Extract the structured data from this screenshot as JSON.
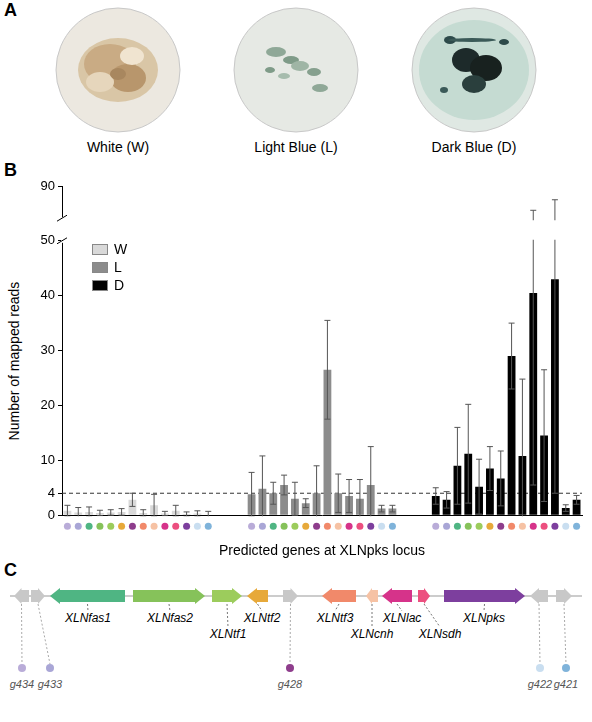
{
  "panel_letters": [
    "A",
    "B",
    "C"
  ],
  "photos": [
    {
      "label": "White (W)"
    },
    {
      "label": "Light Blue (L)"
    },
    {
      "label": "Dark Blue (D)"
    }
  ],
  "chart_data": {
    "type": "bar",
    "x_label": "Predicted genes at XLNpks locus",
    "y_label": "Number of mapped reads",
    "series": [
      {
        "name": "W",
        "color": "#d9d9d9",
        "values": [
          0.8,
          0.5,
          0.6,
          0.4,
          0.5,
          0.6,
          2.8,
          0.4,
          1.8,
          0.3,
          0.8,
          0.2,
          0.3,
          0.1
        ],
        "errors": [
          1.0,
          0.9,
          0.9,
          0.5,
          0.5,
          0.6,
          1.2,
          0.6,
          2.0,
          0.4,
          1.0,
          0.4,
          0.5,
          0.6
        ]
      },
      {
        "name": "L",
        "color": "#8c8c8c",
        "values": [
          3.8,
          4.8,
          4.0,
          5.5,
          3.0,
          2.2,
          4.0,
          26.5,
          4.0,
          3.5,
          3.0,
          5.5,
          1.2,
          1.2
        ],
        "errors": [
          4.0,
          6.0,
          2.0,
          1.8,
          3.0,
          0.8,
          5.0,
          9.0,
          3.5,
          3.0,
          3.5,
          7.0,
          0.6,
          0.6
        ]
      },
      {
        "name": "D",
        "color": "#000000",
        "values": [
          3.5,
          2.8,
          9.0,
          11.2,
          5.2,
          8.5,
          6.7,
          29.0,
          10.8,
          40.5,
          14.5,
          43.0,
          1.3,
          2.8
        ],
        "errors": [
          1.5,
          1.5,
          7.0,
          9.0,
          5.0,
          4.0,
          5.0,
          6.0,
          14.0,
          35.0,
          12.0,
          39.0,
          0.6,
          0.8
        ]
      }
    ],
    "category_colors": [
      "#b9acd8",
      "#a9a6d6",
      "#4fb583",
      "#86c25a",
      "#9ccc5c",
      "#e7a93a",
      "#8e3d8c",
      "#f1896a",
      "#f6c2a4",
      "#d6338a",
      "#ec4f7f",
      "#7d3f9e",
      "#c9def0",
      "#7fb3da"
    ],
    "ylim": [
      0,
      90
    ],
    "yticks": [
      0,
      4,
      10,
      20,
      30,
      40,
      50,
      90
    ],
    "axis_break": [
      50,
      70
    ],
    "reference_line": 4,
    "grid": false,
    "legend": "top-left",
    "tick_labels": "y"
  },
  "gene_map": {
    "genes": [
      {
        "name": "g434",
        "color": "#b9acd8"
      },
      {
        "name": "g433",
        "color": "#a9a6d6"
      },
      {
        "name": "XLNfas1",
        "color": "#4fb583"
      },
      {
        "name": "XLNfas2",
        "color": "#86c25a"
      },
      {
        "name": "XLNtf1",
        "color": "#9ccc5c"
      },
      {
        "name": "XLNtf2",
        "color": "#e7a93a"
      },
      {
        "name": "g428",
        "color": "#8e3d8c"
      },
      {
        "name": "XLNtf3",
        "color": "#f1896a"
      },
      {
        "name": "XLNcnh",
        "color": "#f6c2a4"
      },
      {
        "name": "XLNlac",
        "color": "#d6338a"
      },
      {
        "name": "XLNsdh",
        "color": "#ec4f7f"
      },
      {
        "name": "XLNpks",
        "color": "#7d3f9e"
      },
      {
        "name": "g422",
        "color": "#c9def0"
      },
      {
        "name": "g421",
        "color": "#7fb3da"
      }
    ]
  }
}
